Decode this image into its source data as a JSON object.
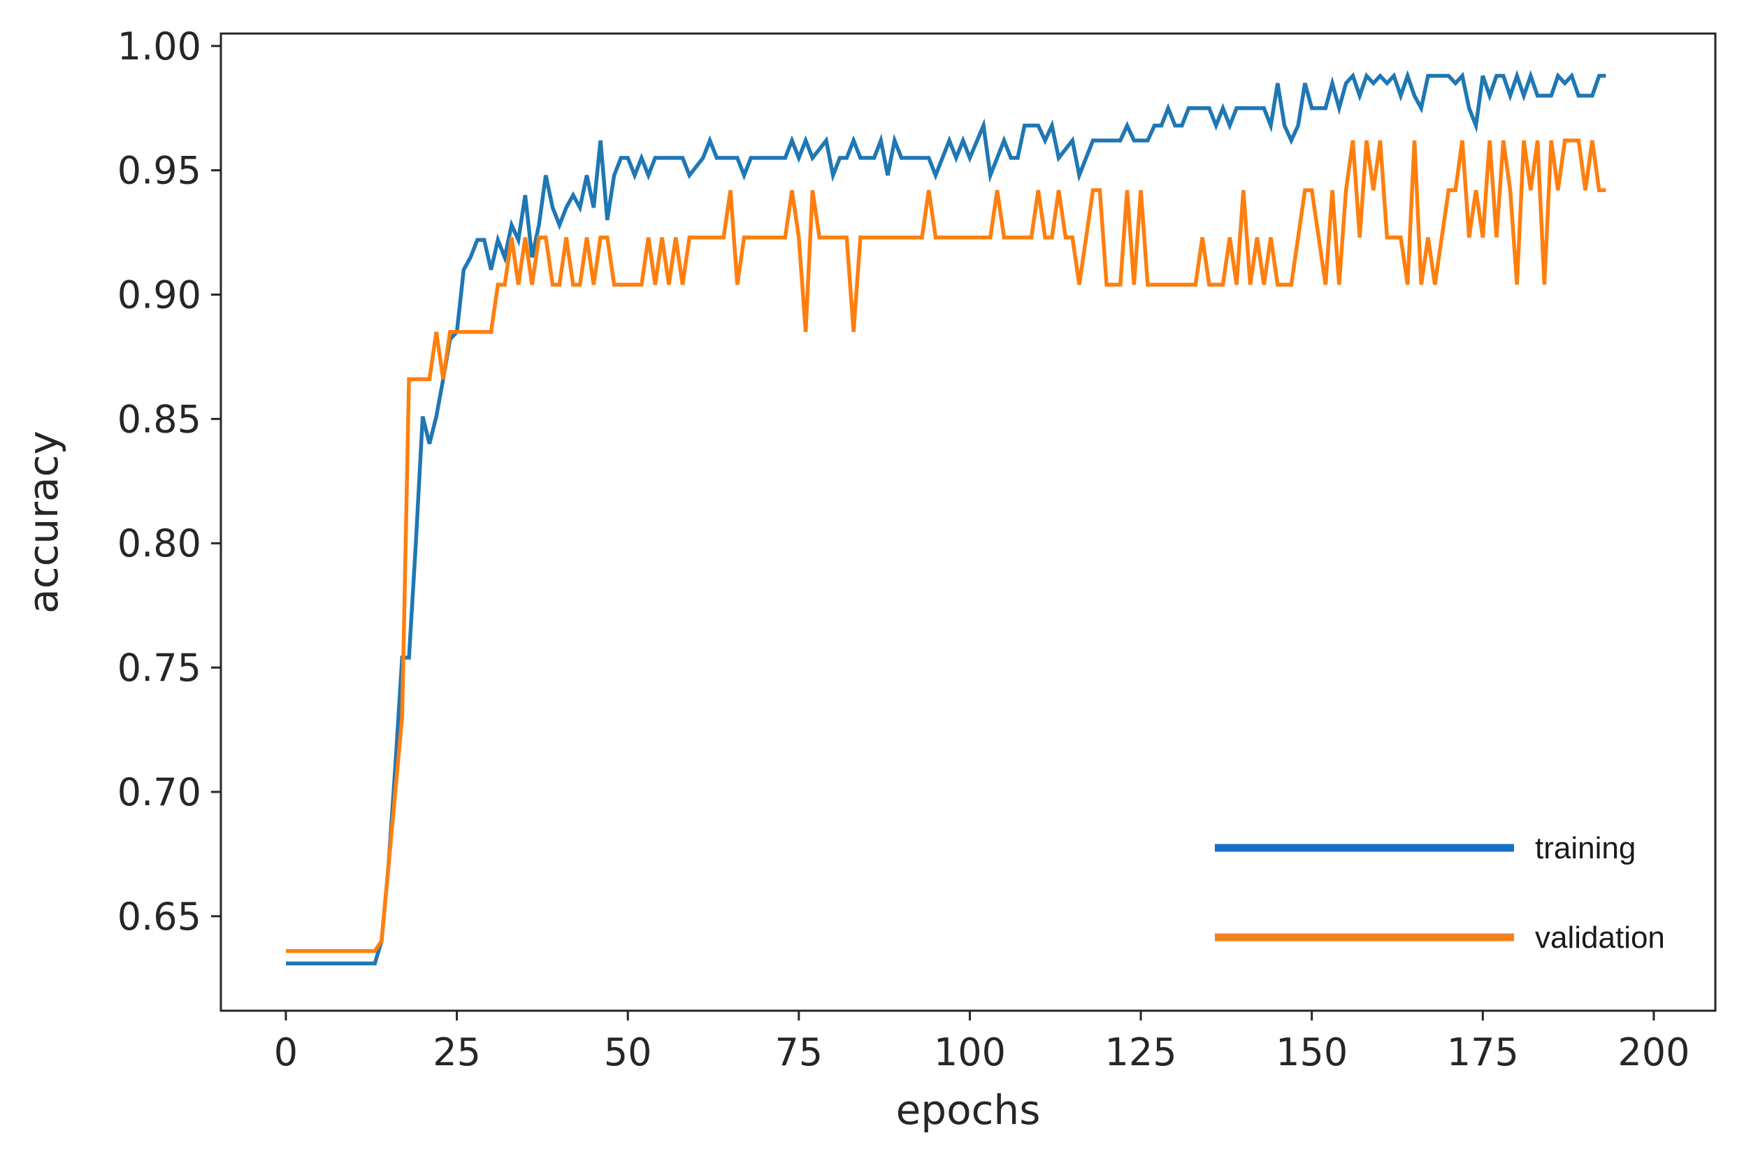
{
  "chart_data": {
    "type": "line",
    "title": "",
    "xlabel": "epochs",
    "ylabel": "accuracy",
    "xlim": [
      -9.5,
      209
    ],
    "ylim": [
      0.612,
      1.005
    ],
    "xticks": [
      0,
      25,
      50,
      75,
      100,
      125,
      150,
      175,
      200
    ],
    "yticks": [
      0.65,
      0.7,
      0.75,
      0.8,
      0.85,
      0.9,
      0.95,
      1.0
    ],
    "xtick_labels": [
      "0",
      "25",
      "50",
      "75",
      "100",
      "125",
      "150",
      "175",
      "200"
    ],
    "ytick_labels": [
      "0.65",
      "0.70",
      "0.75",
      "0.80",
      "0.85",
      "0.90",
      "0.95",
      "1.00"
    ],
    "grid": false,
    "legend_position": "lower-right",
    "series": [
      {
        "name": "training",
        "color": "#1f77b4",
        "legend_color": "#1570c8",
        "points": [
          [
            0,
            0.631
          ],
          [
            13,
            0.631
          ],
          [
            14,
            0.64
          ],
          [
            15,
            0.67
          ],
          [
            16,
            0.71
          ],
          [
            17,
            0.754
          ],
          [
            18,
            0.754
          ],
          [
            19,
            0.8
          ],
          [
            20,
            0.851
          ],
          [
            21,
            0.84
          ],
          [
            22,
            0.851
          ],
          [
            23,
            0.866
          ],
          [
            24,
            0.882
          ],
          [
            25,
            0.885
          ],
          [
            26,
            0.91
          ],
          [
            27,
            0.915
          ],
          [
            28,
            0.922
          ],
          [
            29,
            0.922
          ],
          [
            30,
            0.91
          ],
          [
            31,
            0.922
          ],
          [
            32,
            0.915
          ],
          [
            33,
            0.928
          ],
          [
            34,
            0.922
          ],
          [
            35,
            0.94
          ],
          [
            36,
            0.915
          ],
          [
            37,
            0.928
          ],
          [
            38,
            0.948
          ],
          [
            39,
            0.935
          ],
          [
            40,
            0.928
          ],
          [
            41,
            0.935
          ],
          [
            42,
            0.94
          ],
          [
            43,
            0.935
          ],
          [
            44,
            0.948
          ],
          [
            45,
            0.935
          ],
          [
            46,
            0.962
          ],
          [
            47,
            0.93
          ],
          [
            48,
            0.948
          ],
          [
            49,
            0.955
          ],
          [
            50,
            0.955
          ],
          [
            51,
            0.948
          ],
          [
            52,
            0.955
          ],
          [
            53,
            0.948
          ],
          [
            54,
            0.955
          ],
          [
            55,
            0.955
          ],
          [
            56,
            0.955
          ],
          [
            58,
            0.955
          ],
          [
            59,
            0.948
          ],
          [
            61,
            0.955
          ],
          [
            62,
            0.962
          ],
          [
            63,
            0.955
          ],
          [
            65,
            0.955
          ],
          [
            66,
            0.955
          ],
          [
            67,
            0.948
          ],
          [
            68,
            0.955
          ],
          [
            69,
            0.955
          ],
          [
            72,
            0.955
          ],
          [
            73,
            0.955
          ],
          [
            74,
            0.962
          ],
          [
            75,
            0.955
          ],
          [
            76,
            0.962
          ],
          [
            77,
            0.955
          ],
          [
            79,
            0.962
          ],
          [
            80,
            0.948
          ],
          [
            81,
            0.955
          ],
          [
            82,
            0.955
          ],
          [
            83,
            0.962
          ],
          [
            84,
            0.955
          ],
          [
            86,
            0.955
          ],
          [
            87,
            0.962
          ],
          [
            88,
            0.948
          ],
          [
            89,
            0.962
          ],
          [
            90,
            0.955
          ],
          [
            93,
            0.955
          ],
          [
            94,
            0.955
          ],
          [
            95,
            0.948
          ],
          [
            96,
            0.955
          ],
          [
            97,
            0.962
          ],
          [
            98,
            0.955
          ],
          [
            99,
            0.962
          ],
          [
            100,
            0.955
          ],
          [
            102,
            0.968
          ],
          [
            103,
            0.948
          ],
          [
            104,
            0.955
          ],
          [
            105,
            0.962
          ],
          [
            106,
            0.955
          ],
          [
            107,
            0.955
          ],
          [
            108,
            0.968
          ],
          [
            109,
            0.968
          ],
          [
            110,
            0.968
          ],
          [
            111,
            0.962
          ],
          [
            112,
            0.968
          ],
          [
            113,
            0.955
          ],
          [
            115,
            0.962
          ],
          [
            116,
            0.948
          ],
          [
            118,
            0.962
          ],
          [
            119,
            0.962
          ],
          [
            122,
            0.962
          ],
          [
            123,
            0.968
          ],
          [
            124,
            0.962
          ],
          [
            126,
            0.962
          ],
          [
            127,
            0.968
          ],
          [
            128,
            0.968
          ],
          [
            129,
            0.975
          ],
          [
            130,
            0.968
          ],
          [
            131,
            0.968
          ],
          [
            132,
            0.975
          ],
          [
            135,
            0.975
          ],
          [
            136,
            0.968
          ],
          [
            137,
            0.975
          ],
          [
            138,
            0.968
          ],
          [
            139,
            0.975
          ],
          [
            143,
            0.975
          ],
          [
            144,
            0.968
          ],
          [
            145,
            0.985
          ],
          [
            146,
            0.968
          ],
          [
            147,
            0.962
          ],
          [
            148,
            0.968
          ],
          [
            149,
            0.985
          ],
          [
            150,
            0.975
          ],
          [
            152,
            0.975
          ],
          [
            153,
            0.985
          ],
          [
            154,
            0.975
          ],
          [
            155,
            0.985
          ],
          [
            156,
            0.988
          ],
          [
            157,
            0.98
          ],
          [
            158,
            0.988
          ],
          [
            159,
            0.985
          ],
          [
            160,
            0.988
          ],
          [
            161,
            0.985
          ],
          [
            162,
            0.988
          ],
          [
            163,
            0.98
          ],
          [
            164,
            0.988
          ],
          [
            165,
            0.98
          ],
          [
            166,
            0.975
          ],
          [
            167,
            0.988
          ],
          [
            168,
            0.988
          ],
          [
            170,
            0.988
          ],
          [
            171,
            0.985
          ],
          [
            172,
            0.988
          ],
          [
            173,
            0.975
          ],
          [
            174,
            0.968
          ],
          [
            175,
            0.988
          ],
          [
            176,
            0.98
          ],
          [
            177,
            0.988
          ],
          [
            178,
            0.988
          ],
          [
            179,
            0.98
          ],
          [
            180,
            0.988
          ],
          [
            181,
            0.98
          ],
          [
            182,
            0.988
          ],
          [
            183,
            0.98
          ],
          [
            185,
            0.98
          ],
          [
            186,
            0.988
          ],
          [
            187,
            0.985
          ],
          [
            188,
            0.988
          ],
          [
            189,
            0.98
          ],
          [
            191,
            0.98
          ],
          [
            192,
            0.988
          ],
          [
            193,
            0.988
          ]
        ]
      },
      {
        "name": "validation",
        "color": "#ff7f0e",
        "legend_color": "#f5801e",
        "points": [
          [
            0,
            0.636
          ],
          [
            13,
            0.636
          ],
          [
            14,
            0.64
          ],
          [
            15,
            0.67
          ],
          [
            16,
            0.7
          ],
          [
            17,
            0.73
          ],
          [
            18,
            0.866
          ],
          [
            19,
            0.866
          ],
          [
            20,
            0.866
          ],
          [
            21,
            0.866
          ],
          [
            22,
            0.885
          ],
          [
            23,
            0.866
          ],
          [
            24,
            0.885
          ],
          [
            25,
            0.885
          ],
          [
            30,
            0.885
          ],
          [
            31,
            0.904
          ],
          [
            32,
            0.904
          ],
          [
            33,
            0.923
          ],
          [
            34,
            0.904
          ],
          [
            35,
            0.923
          ],
          [
            36,
            0.904
          ],
          [
            37,
            0.923
          ],
          [
            38,
            0.923
          ],
          [
            39,
            0.904
          ],
          [
            40,
            0.904
          ],
          [
            41,
            0.923
          ],
          [
            42,
            0.904
          ],
          [
            43,
            0.904
          ],
          [
            44,
            0.923
          ],
          [
            45,
            0.904
          ],
          [
            46,
            0.923
          ],
          [
            47,
            0.923
          ],
          [
            48,
            0.904
          ],
          [
            50,
            0.904
          ],
          [
            51,
            0.904
          ],
          [
            52,
            0.904
          ],
          [
            53,
            0.923
          ],
          [
            54,
            0.904
          ],
          [
            55,
            0.923
          ],
          [
            56,
            0.904
          ],
          [
            57,
            0.923
          ],
          [
            58,
            0.904
          ],
          [
            59,
            0.923
          ],
          [
            60,
            0.923
          ],
          [
            62,
            0.923
          ],
          [
            64,
            0.923
          ],
          [
            65,
            0.942
          ],
          [
            66,
            0.904
          ],
          [
            67,
            0.923
          ],
          [
            71,
            0.923
          ],
          [
            73,
            0.923
          ],
          [
            74,
            0.942
          ],
          [
            75,
            0.923
          ],
          [
            76,
            0.885
          ],
          [
            77,
            0.942
          ],
          [
            78,
            0.923
          ],
          [
            79,
            0.923
          ],
          [
            82,
            0.923
          ],
          [
            83,
            0.885
          ],
          [
            84,
            0.923
          ],
          [
            86,
            0.923
          ],
          [
            93,
            0.923
          ],
          [
            94,
            0.942
          ],
          [
            95,
            0.923
          ],
          [
            99,
            0.923
          ],
          [
            103,
            0.923
          ],
          [
            104,
            0.942
          ],
          [
            105,
            0.923
          ],
          [
            106,
            0.923
          ],
          [
            109,
            0.923
          ],
          [
            110,
            0.942
          ],
          [
            111,
            0.923
          ],
          [
            112,
            0.923
          ],
          [
            113,
            0.942
          ],
          [
            114,
            0.923
          ],
          [
            115,
            0.923
          ],
          [
            116,
            0.904
          ],
          [
            117,
            0.923
          ],
          [
            118,
            0.942
          ],
          [
            119,
            0.942
          ],
          [
            120,
            0.904
          ],
          [
            121,
            0.904
          ],
          [
            122,
            0.904
          ],
          [
            123,
            0.942
          ],
          [
            124,
            0.904
          ],
          [
            125,
            0.942
          ],
          [
            126,
            0.904
          ],
          [
            127,
            0.904
          ],
          [
            133,
            0.904
          ],
          [
            134,
            0.923
          ],
          [
            135,
            0.904
          ],
          [
            136,
            0.904
          ],
          [
            137,
            0.904
          ],
          [
            138,
            0.923
          ],
          [
            139,
            0.904
          ],
          [
            140,
            0.942
          ],
          [
            141,
            0.904
          ],
          [
            142,
            0.923
          ],
          [
            143,
            0.904
          ],
          [
            144,
            0.923
          ],
          [
            145,
            0.904
          ],
          [
            146,
            0.904
          ],
          [
            147,
            0.904
          ],
          [
            148,
            0.923
          ],
          [
            149,
            0.942
          ],
          [
            150,
            0.942
          ],
          [
            151,
            0.923
          ],
          [
            152,
            0.904
          ],
          [
            153,
            0.942
          ],
          [
            154,
            0.904
          ],
          [
            155,
            0.942
          ],
          [
            156,
            0.962
          ],
          [
            157,
            0.923
          ],
          [
            158,
            0.962
          ],
          [
            159,
            0.942
          ],
          [
            160,
            0.962
          ],
          [
            161,
            0.923
          ],
          [
            162,
            0.923
          ],
          [
            163,
            0.923
          ],
          [
            164,
            0.904
          ],
          [
            165,
            0.962
          ],
          [
            166,
            0.904
          ],
          [
            167,
            0.923
          ],
          [
            168,
            0.904
          ],
          [
            169,
            0.923
          ],
          [
            170,
            0.942
          ],
          [
            171,
            0.942
          ],
          [
            172,
            0.962
          ],
          [
            173,
            0.923
          ],
          [
            174,
            0.942
          ],
          [
            175,
            0.923
          ],
          [
            176,
            0.962
          ],
          [
            177,
            0.923
          ],
          [
            178,
            0.962
          ],
          [
            179,
            0.942
          ],
          [
            180,
            0.904
          ],
          [
            181,
            0.962
          ],
          [
            182,
            0.942
          ],
          [
            183,
            0.962
          ],
          [
            184,
            0.904
          ],
          [
            185,
            0.962
          ],
          [
            186,
            0.942
          ],
          [
            187,
            0.962
          ],
          [
            188,
            0.962
          ],
          [
            189,
            0.962
          ],
          [
            190,
            0.942
          ],
          [
            191,
            0.962
          ],
          [
            192,
            0.942
          ],
          [
            193,
            0.942
          ]
        ]
      }
    ]
  }
}
